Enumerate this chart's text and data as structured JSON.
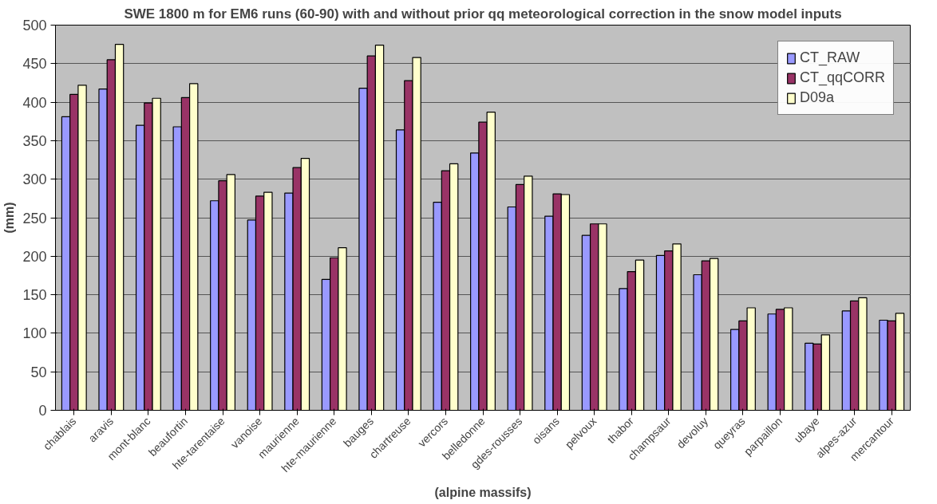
{
  "chart_data": {
    "type": "bar",
    "title": "SWE 1800 m for EM6 runs (60-90) with and without prior qq meteorological correction in the snow model inputs",
    "xlabel": "(alpine massifs)",
    "ylabel": "(mm)",
    "categories": [
      "chablais",
      "aravis",
      "mont-blanc",
      "beaufortin",
      "hte-tarentaise",
      "vanoise",
      "maurienne",
      "hte-maurienne",
      "bauges",
      "chartreuse",
      "vercors",
      "belledonne",
      "gdes-rousses",
      "oisans",
      "pelvoux",
      "thabor",
      "champsaur",
      "devoluy",
      "queyras",
      "parpaillon",
      "ubaye",
      "alpes-azur",
      "mercantour"
    ],
    "series": [
      {
        "name": "CT_RAW",
        "color": "#9999ff",
        "values": [
          381,
          417,
          370,
          368,
          272,
          247,
          282,
          170,
          418,
          364,
          270,
          334,
          264,
          252,
          227,
          158,
          201,
          176,
          105,
          125,
          87,
          129,
          117
        ]
      },
      {
        "name": "CT_qqCORR",
        "color": "#993366",
        "values": [
          410,
          455,
          399,
          406,
          298,
          278,
          315,
          198,
          460,
          428,
          311,
          374,
          293,
          281,
          242,
          180,
          207,
          194,
          116,
          131,
          86,
          142,
          116
        ]
      },
      {
        "name": "D09a",
        "color": "#ffffcc",
        "values": [
          422,
          475,
          405,
          424,
          306,
          283,
          327,
          211,
          474,
          458,
          320,
          387,
          304,
          280,
          242,
          195,
          216,
          197,
          133,
          133,
          98,
          146,
          126
        ]
      }
    ],
    "ylim": [
      0,
      500
    ],
    "yticks": [
      0,
      50,
      100,
      150,
      200,
      250,
      300,
      350,
      400,
      450,
      500
    ],
    "grid": "y",
    "legend": "top right"
  }
}
